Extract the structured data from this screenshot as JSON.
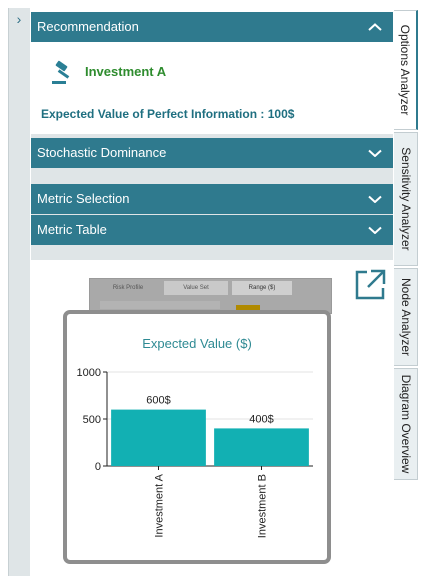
{
  "panel": {
    "collapse_glyph": "›",
    "sections": {
      "recommendation": {
        "label": "Recommendation",
        "state": "expanded",
        "chevron": "chevron-up-icon"
      },
      "stochastic": {
        "label": "Stochastic Dominance",
        "state": "collapsed",
        "chevron": "chevron-down-icon"
      },
      "metric_selection": {
        "label": "Metric Selection",
        "state": "collapsed",
        "chevron": "chevron-down-icon"
      },
      "metric_table": {
        "label": "Metric Table",
        "state": "collapsed",
        "chevron": "chevron-down-icon"
      }
    },
    "recommendation": {
      "icon": "gavel-icon",
      "choice": "Investment A",
      "evpi": "Expected Value of Perfect Information : 100$"
    },
    "thumbnail": {
      "tabs": [
        "Risk Profile",
        "Value Set",
        "Range ($)"
      ]
    }
  },
  "side_tabs": [
    {
      "label": "Options Analyzer",
      "active": true
    },
    {
      "label": "Sensitivity Analyzer",
      "active": false
    },
    {
      "label": "Node Analyzer",
      "active": false
    },
    {
      "label": "Diagram Overview",
      "active": false
    }
  ],
  "colors": {
    "header": "#2f7a8e",
    "bar": "#12b0b3",
    "recommend": "#2e8c2e",
    "title": "#2e8a93"
  },
  "chart_data": {
    "type": "bar",
    "title": "Expected Value ($)",
    "categories": [
      "Investment A",
      "Investment B"
    ],
    "values": [
      600,
      400
    ],
    "value_labels": [
      "600$",
      "400$"
    ],
    "yticks": [
      0,
      500,
      1000
    ],
    "ylim": [
      0,
      1000
    ],
    "grid": true
  }
}
